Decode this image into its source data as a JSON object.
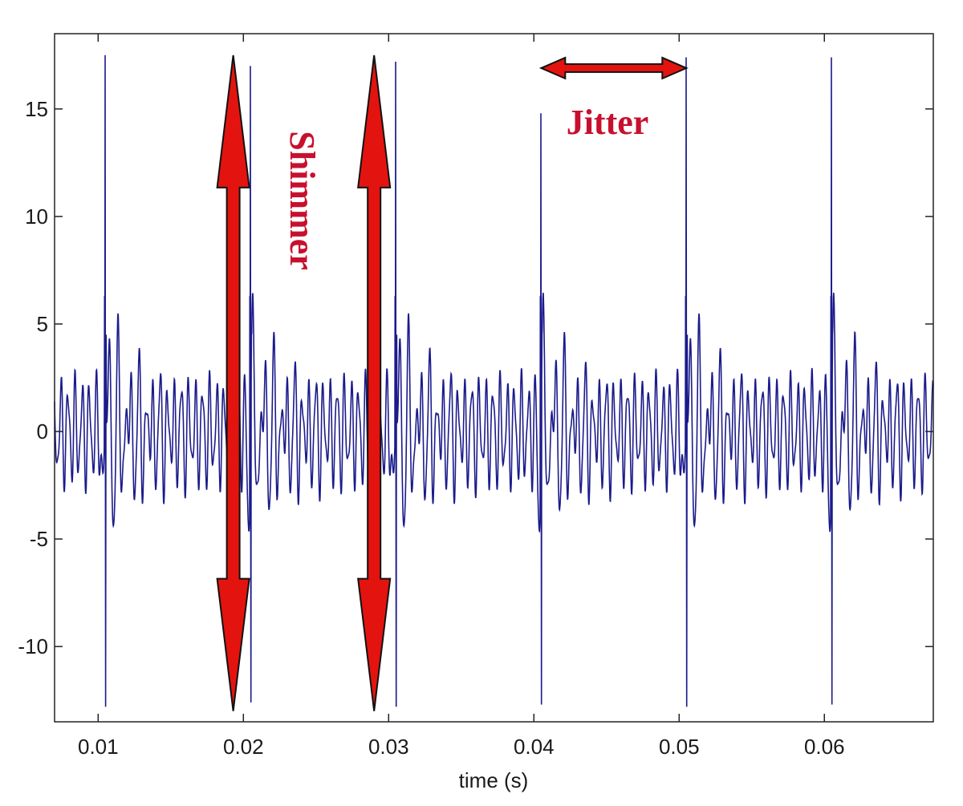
{
  "chart_data": {
    "type": "line",
    "title": "",
    "xlabel": "time (s)",
    "ylabel": "",
    "xlim": [
      0.007,
      0.0675
    ],
    "ylim": [
      -13.5,
      18.5
    ],
    "xticks": [
      0.01,
      0.02,
      0.03,
      0.04,
      0.05,
      0.06
    ],
    "xtick_labels": [
      "0.01",
      "0.02",
      "0.03",
      "0.04",
      "0.05",
      "0.06"
    ],
    "yticks": [
      -10,
      -5,
      0,
      5,
      10,
      15
    ],
    "ytick_labels": [
      "-10",
      "-5",
      "0",
      "5",
      "10",
      "15"
    ],
    "grid": false,
    "line_color": "#1b1b8c",
    "glottal_pulses": [
      {
        "t": 0.0105,
        "peak": 17.5,
        "trough": -12.8
      },
      {
        "t": 0.0205,
        "peak": 17.0,
        "trough": -12.6
      },
      {
        "t": 0.0305,
        "peak": 17.2,
        "trough": -12.8
      },
      {
        "t": 0.0405,
        "peak": 14.8,
        "trough": -12.7
      },
      {
        "t": 0.0505,
        "peak": 17.4,
        "trough": -12.8
      },
      {
        "t": 0.0605,
        "peak": 17.4,
        "trough": -12.7
      }
    ],
    "annotations": {
      "shimmer": {
        "label": "Shimmer",
        "arrow_color": "#e3140f",
        "arrows": [
          {
            "x": 0.0193,
            "y_top": 17.5,
            "y_bottom": -13.0
          },
          {
            "x": 0.029,
            "y_top": 17.5,
            "y_bottom": -13.0
          }
        ]
      },
      "jitter": {
        "label": "Jitter",
        "arrow_color": "#e3140f",
        "x_start": 0.0405,
        "x_end": 0.0505,
        "y": 16.9
      }
    }
  }
}
